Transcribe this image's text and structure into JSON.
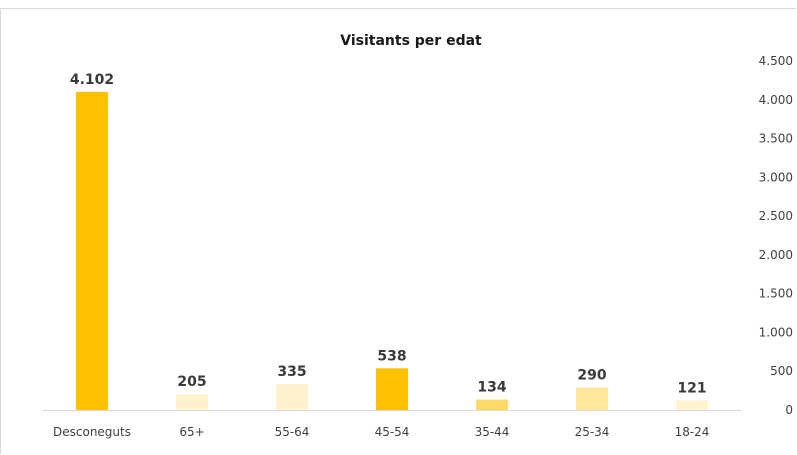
{
  "chart_data": {
    "type": "bar",
    "title": "Visitants per edat",
    "categories": [
      "Desconeguts",
      "65+",
      "55-64",
      "45-54",
      "35-44",
      "25-34",
      "18-24"
    ],
    "values": [
      4102,
      205,
      335,
      538,
      134,
      290,
      121
    ],
    "value_labels": [
      "4.102",
      "205",
      "335",
      "538",
      "134",
      "290",
      "121"
    ],
    "bar_colors": [
      "#ffc000",
      "#fff2cc",
      "#fff2cc",
      "#ffc000",
      "#ffd966",
      "#ffe699",
      "#fff2cc"
    ],
    "ylim": [
      0,
      4500
    ],
    "yticks": [
      0,
      500,
      1000,
      1500,
      2000,
      2500,
      3000,
      3500,
      4000,
      4500
    ],
    "ytick_labels": [
      "0",
      "500",
      "1.000",
      "1.500",
      "2.000",
      "2.500",
      "3.000",
      "3.500",
      "4.000",
      "4.500"
    ],
    "y_axis_side": "right",
    "grid": false,
    "legend": "none",
    "xlabel": "",
    "ylabel": ""
  }
}
